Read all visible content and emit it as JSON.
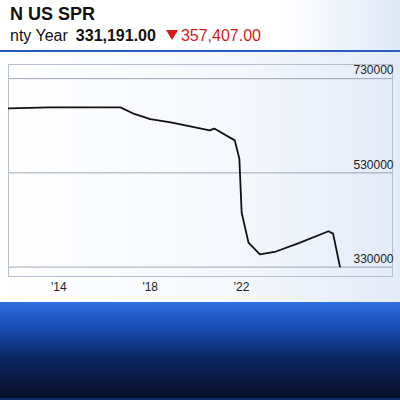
{
  "chart_data": {
    "type": "line",
    "title": "N US SPR",
    "subtitle": "nty Year",
    "annotations": [
      "331,191.00",
      "357,407.00"
    ],
    "x": [
      2011.8,
      2013.6,
      2016.7,
      2017.3,
      2018.0,
      2018.9,
      2019.7,
      2020.6,
      2020.8,
      2021.7,
      2021.9,
      2022.0,
      2022.3,
      2022.8,
      2023.5,
      2024.5,
      2025.8,
      2026.0,
      2026.3
    ],
    "values": [
      667000,
      669000,
      669000,
      655000,
      644000,
      637000,
      629000,
      620000,
      624000,
      599000,
      560000,
      446000,
      382000,
      357000,
      363000,
      381000,
      406000,
      401000,
      331000
    ],
    "color": "#111111",
    "xlim": [
      2011.8,
      2028.6
    ],
    "ylim": [
      310000,
      760000
    ],
    "xticks": [
      {
        "value": 2014,
        "label": "'14"
      },
      {
        "value": 2018,
        "label": "'18"
      },
      {
        "value": 2022,
        "label": "'22"
      }
    ],
    "yticks": [
      330000,
      530000,
      730000
    ],
    "grid": true
  }
}
